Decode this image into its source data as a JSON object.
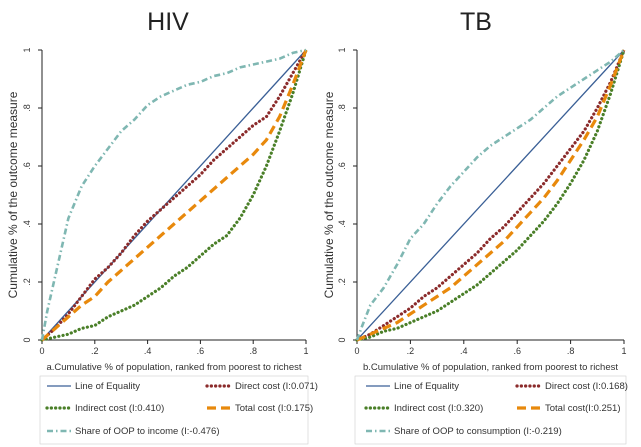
{
  "chart_data": [
    {
      "type": "line",
      "title": "HIV",
      "xlabel": "a.Cumulative % of population, ranked from poorest to richest",
      "ylabel": "Cumulative % of the outcome measure",
      "xlim": [
        0,
        1
      ],
      "ylim": [
        0,
        1
      ],
      "x_ticks": [
        "0",
        ".2",
        ".4",
        ".6",
        ".8",
        "1"
      ],
      "y_ticks": [
        "0",
        ".2",
        ".4",
        ".6",
        ".8",
        "1"
      ],
      "grid": false,
      "legend_position": "bottom",
      "series": [
        {
          "name": "Line of Equality",
          "color": "#3a5f96",
          "style": "solid",
          "x": [
            0,
            1
          ],
          "y": [
            0,
            1
          ]
        },
        {
          "name": "Direct cost (I:0.071)",
          "color": "#8b2b2b",
          "style": "dotted",
          "x": [
            0,
            0.05,
            0.1,
            0.15,
            0.2,
            0.25,
            0.3,
            0.35,
            0.4,
            0.45,
            0.5,
            0.55,
            0.6,
            0.65,
            0.7,
            0.75,
            0.8,
            0.85,
            0.9,
            0.95,
            1
          ],
          "y": [
            0,
            0.04,
            0.09,
            0.15,
            0.21,
            0.25,
            0.3,
            0.36,
            0.41,
            0.45,
            0.49,
            0.53,
            0.57,
            0.62,
            0.66,
            0.7,
            0.74,
            0.77,
            0.84,
            0.92,
            1
          ]
        },
        {
          "name": "Indirect cost (I:0.410)",
          "color": "#4a7f28",
          "style": "dotted",
          "x": [
            0,
            0.05,
            0.1,
            0.15,
            0.2,
            0.25,
            0.3,
            0.35,
            0.4,
            0.45,
            0.5,
            0.55,
            0.6,
            0.65,
            0.7,
            0.75,
            0.8,
            0.85,
            0.9,
            0.95,
            1
          ],
          "y": [
            0,
            0.01,
            0.02,
            0.04,
            0.05,
            0.08,
            0.1,
            0.12,
            0.15,
            0.18,
            0.22,
            0.25,
            0.29,
            0.33,
            0.36,
            0.42,
            0.5,
            0.6,
            0.72,
            0.85,
            1
          ]
        },
        {
          "name": "Total cost (I:0.175)",
          "color": "#e8890c",
          "style": "dashed",
          "x": [
            0,
            0.05,
            0.1,
            0.15,
            0.2,
            0.25,
            0.3,
            0.35,
            0.4,
            0.45,
            0.5,
            0.55,
            0.6,
            0.65,
            0.7,
            0.75,
            0.8,
            0.85,
            0.9,
            0.95,
            1
          ],
          "y": [
            0,
            0.04,
            0.08,
            0.12,
            0.15,
            0.2,
            0.24,
            0.28,
            0.32,
            0.36,
            0.4,
            0.44,
            0.48,
            0.52,
            0.56,
            0.6,
            0.64,
            0.69,
            0.77,
            0.88,
            1
          ]
        },
        {
          "name": "Share of OOP to income (I:-0.476)",
          "color": "#7fb7b2",
          "style": "dashdot",
          "x": [
            0,
            0.02,
            0.05,
            0.08,
            0.1,
            0.15,
            0.2,
            0.25,
            0.3,
            0.35,
            0.4,
            0.45,
            0.5,
            0.55,
            0.6,
            0.65,
            0.7,
            0.75,
            0.8,
            0.85,
            0.9,
            0.95,
            1
          ],
          "y": [
            0,
            0.1,
            0.22,
            0.34,
            0.42,
            0.53,
            0.6,
            0.66,
            0.72,
            0.76,
            0.81,
            0.84,
            0.86,
            0.88,
            0.89,
            0.91,
            0.92,
            0.94,
            0.95,
            0.96,
            0.97,
            0.99,
            1
          ]
        }
      ]
    },
    {
      "type": "line",
      "title": "TB",
      "xlabel": "b.Cumulative % of population, ranked from poorest to richest",
      "ylabel": "Cumulative % of the outcome measure",
      "xlim": [
        0,
        1
      ],
      "ylim": [
        0,
        1
      ],
      "x_ticks": [
        "0",
        ".2",
        ".4",
        ".6",
        ".8",
        "1"
      ],
      "y_ticks": [
        "0",
        ".2",
        ".4",
        ".6",
        ".8",
        "1"
      ],
      "grid": false,
      "legend_position": "bottom",
      "series": [
        {
          "name": "Line of Equality",
          "color": "#3a5f96",
          "style": "solid",
          "x": [
            0,
            1
          ],
          "y": [
            0,
            1
          ]
        },
        {
          "name": "Direct cost (I:0.168)",
          "color": "#8b2b2b",
          "style": "dotted",
          "x": [
            0,
            0.05,
            0.1,
            0.15,
            0.2,
            0.25,
            0.3,
            0.35,
            0.4,
            0.45,
            0.5,
            0.55,
            0.6,
            0.65,
            0.7,
            0.75,
            0.8,
            0.85,
            0.9,
            0.95,
            1
          ],
          "y": [
            0,
            0.02,
            0.05,
            0.08,
            0.11,
            0.15,
            0.18,
            0.22,
            0.26,
            0.3,
            0.35,
            0.39,
            0.44,
            0.49,
            0.54,
            0.6,
            0.66,
            0.72,
            0.8,
            0.89,
            1
          ]
        },
        {
          "name": "Indirect cost (I:0.320)",
          "color": "#4a7f28",
          "style": "dotted",
          "x": [
            0,
            0.05,
            0.1,
            0.15,
            0.2,
            0.25,
            0.3,
            0.35,
            0.4,
            0.45,
            0.5,
            0.55,
            0.6,
            0.65,
            0.7,
            0.75,
            0.8,
            0.85,
            0.9,
            0.95,
            1
          ],
          "y": [
            0,
            0.01,
            0.03,
            0.04,
            0.06,
            0.08,
            0.1,
            0.13,
            0.16,
            0.19,
            0.23,
            0.27,
            0.31,
            0.36,
            0.41,
            0.47,
            0.54,
            0.62,
            0.72,
            0.85,
            1
          ]
        },
        {
          "name": "Total cost(I:0.251)",
          "color": "#e8890c",
          "style": "dashed",
          "x": [
            0,
            0.05,
            0.1,
            0.15,
            0.2,
            0.25,
            0.3,
            0.35,
            0.4,
            0.45,
            0.5,
            0.55,
            0.6,
            0.65,
            0.7,
            0.75,
            0.8,
            0.85,
            0.9,
            0.95,
            1
          ],
          "y": [
            0,
            0.02,
            0.04,
            0.06,
            0.09,
            0.12,
            0.15,
            0.18,
            0.22,
            0.26,
            0.3,
            0.34,
            0.39,
            0.44,
            0.49,
            0.55,
            0.62,
            0.69,
            0.77,
            0.88,
            1
          ]
        },
        {
          "name": "Share of OOP to consumption (I:-0.219)",
          "color": "#7fb7b2",
          "style": "dashdot",
          "x": [
            0,
            0.02,
            0.05,
            0.1,
            0.15,
            0.2,
            0.25,
            0.3,
            0.35,
            0.4,
            0.45,
            0.5,
            0.55,
            0.6,
            0.65,
            0.7,
            0.75,
            0.8,
            0.85,
            0.9,
            0.95,
            1
          ],
          "y": [
            0,
            0.05,
            0.12,
            0.18,
            0.26,
            0.35,
            0.4,
            0.47,
            0.53,
            0.58,
            0.63,
            0.67,
            0.7,
            0.73,
            0.76,
            0.8,
            0.84,
            0.87,
            0.9,
            0.93,
            0.96,
            1
          ]
        }
      ]
    }
  ]
}
